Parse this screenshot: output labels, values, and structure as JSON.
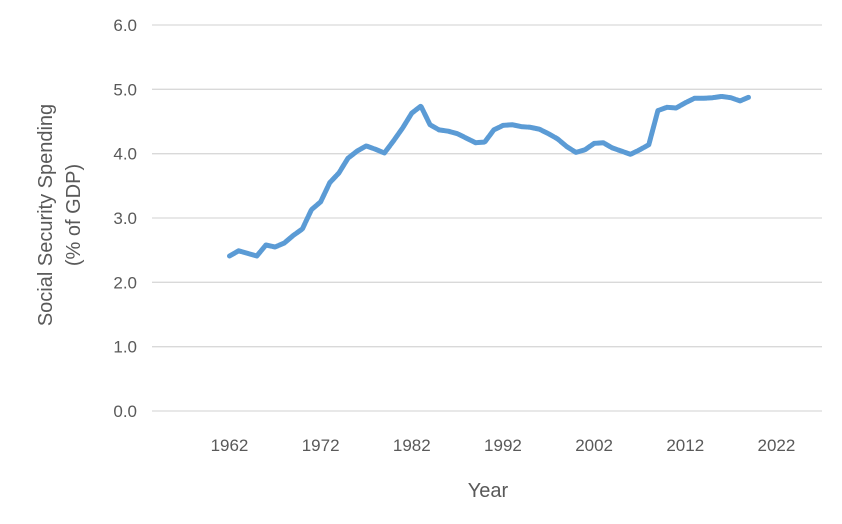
{
  "chart_data": {
    "type": "line",
    "title": "",
    "xlabel": "Year",
    "ylabel_lines": [
      "Social Security Spending",
      "(% of GDP)"
    ],
    "xlim": [
      1953.5,
      2027
    ],
    "ylim": [
      0,
      6
    ],
    "x_ticks": [
      1962,
      1972,
      1982,
      1992,
      2002,
      2012,
      2022
    ],
    "y_ticks": [
      "0.0",
      "1.0",
      "2.0",
      "3.0",
      "4.0",
      "5.0",
      "6.0"
    ],
    "grid": "horizontal",
    "legend": "none",
    "series_color": "#5b9bd5",
    "series": [
      {
        "x": [
          1962,
          1963,
          1964,
          1965,
          1966,
          1967,
          1968,
          1969,
          1970,
          1971,
          1972,
          1973,
          1974,
          1975,
          1976,
          1977,
          1978,
          1979,
          1980,
          1981,
          1982,
          1983,
          1984,
          1985,
          1986,
          1987,
          1988,
          1989,
          1990,
          1991,
          1992,
          1993,
          1994,
          1995,
          1996,
          1997,
          1998,
          1999,
          2000,
          2001,
          2002,
          2003,
          2004,
          2005,
          2006,
          2007,
          2008,
          2009,
          2010,
          2011,
          2012,
          2013,
          2014,
          2015,
          2016,
          2017,
          2018,
          2019
        ],
        "y": [
          2.41,
          2.49,
          2.45,
          2.41,
          2.58,
          2.55,
          2.61,
          2.73,
          2.83,
          3.13,
          3.25,
          3.55,
          3.7,
          3.93,
          4.04,
          4.12,
          4.07,
          4.01,
          4.2,
          4.4,
          4.63,
          4.74,
          4.45,
          4.37,
          4.35,
          4.31,
          4.24,
          4.17,
          4.18,
          4.37,
          4.44,
          4.45,
          4.42,
          4.41,
          4.38,
          4.31,
          4.23,
          4.11,
          4.02,
          4.06,
          4.16,
          4.17,
          4.09,
          4.04,
          3.99,
          4.06,
          4.14,
          4.67,
          4.72,
          4.71,
          4.79,
          4.86,
          4.86,
          4.87,
          4.89,
          4.87,
          4.82,
          4.88
        ]
      }
    ]
  }
}
